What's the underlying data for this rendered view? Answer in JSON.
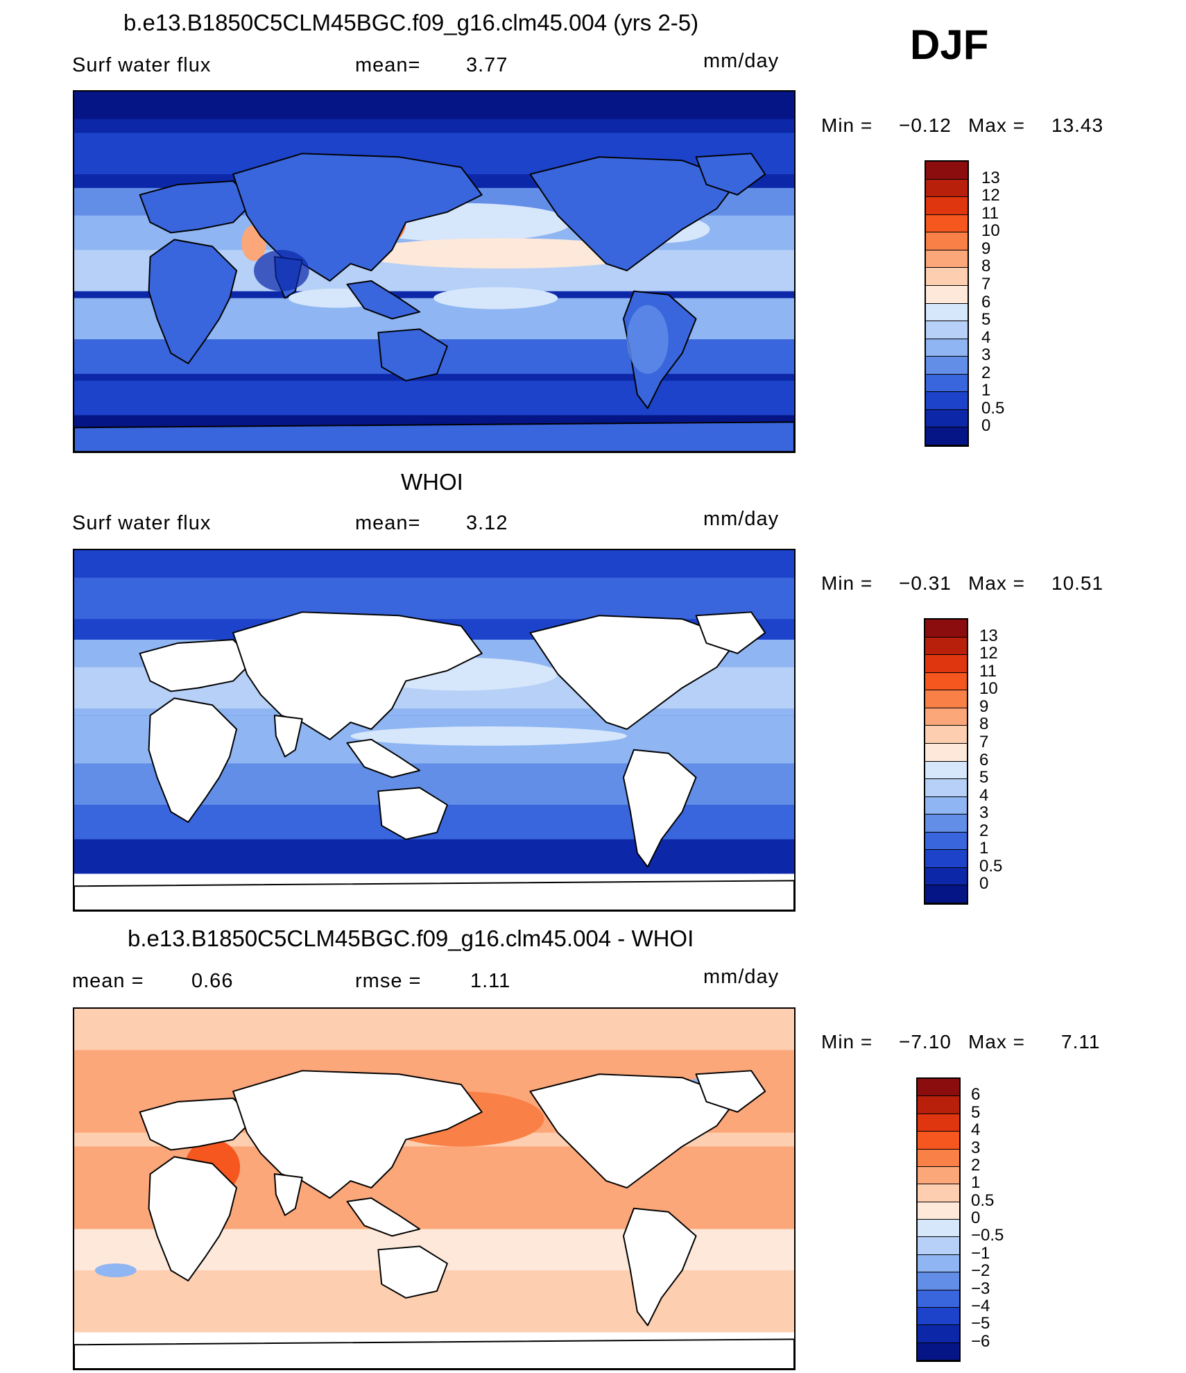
{
  "season": "DJF",
  "panels": [
    {
      "id": "model",
      "title": "b.e13.B1850C5CLM45BGC.f09_g16.clm45.004 (yrs 2-5)",
      "left_label": "Surf  water  flux",
      "mid_label": "mean=",
      "mid_value": "3.77",
      "units": "mm/day",
      "min_label": "Min  =",
      "min_value": "−0.12",
      "max_label": "Max  =",
      "max_value": "13.43",
      "land": "filled",
      "colorbar": {
        "labels": [
          "13",
          "12",
          "11",
          "10",
          "9",
          "8",
          "7",
          "6",
          "5",
          "4",
          "3",
          "2",
          "1",
          "0.5",
          "0"
        ],
        "colors": [
          "#8b0d0d",
          "#b8200c",
          "#e0360f",
          "#f5571e",
          "#f98047",
          "#fba77a",
          "#fdcfb0",
          "#fde8d9",
          "#d6e6fb",
          "#b6d0f7",
          "#8fb5f2",
          "#628ee8",
          "#3a66dd",
          "#1c43c9",
          "#0c28a8",
          "#051585"
        ]
      },
      "stats": {
        "mean": 3.77,
        "min": -0.12,
        "max": 13.43
      }
    },
    {
      "id": "obs",
      "title": "WHOI",
      "left_label": "Surf  water  flux",
      "mid_label": "mean=",
      "mid_value": "3.12",
      "units": "mm/day",
      "min_label": "Min  =",
      "min_value": "−0.31",
      "max_label": "Max  =",
      "max_value": "10.51",
      "land": "blank",
      "colorbar": {
        "labels": [
          "13",
          "12",
          "11",
          "10",
          "9",
          "8",
          "7",
          "6",
          "5",
          "4",
          "3",
          "2",
          "1",
          "0.5",
          "0"
        ],
        "colors": [
          "#8b0d0d",
          "#b8200c",
          "#e0360f",
          "#f5571e",
          "#f98047",
          "#fba77a",
          "#fdcfb0",
          "#fde8d9",
          "#d6e6fb",
          "#b6d0f7",
          "#8fb5f2",
          "#628ee8",
          "#3a66dd",
          "#1c43c9",
          "#0c28a8",
          "#051585"
        ]
      },
      "stats": {
        "mean": 3.12,
        "min": -0.31,
        "max": 10.51
      }
    },
    {
      "id": "diff",
      "title": "b.e13.B1850C5CLM45BGC.f09_g16.clm45.004 - WHOI",
      "left_label": "mean  =",
      "left_value": "0.66",
      "mid_label": "rmse  =",
      "mid_value": "1.11",
      "units": "mm/day",
      "min_label": "Min  =",
      "min_value": "−7.10",
      "max_label": "Max  =",
      "max_value": "7.11",
      "land": "blank",
      "colorbar": {
        "labels": [
          "6",
          "5",
          "4",
          "3",
          "2",
          "1",
          "0.5",
          "0",
          "−0.5",
          "−1",
          "−2",
          "−3",
          "−4",
          "−5",
          "−6"
        ],
        "colors": [
          "#8b0d0d",
          "#b8200c",
          "#e0360f",
          "#f5571e",
          "#f98047",
          "#fba77a",
          "#fdcfb0",
          "#fde8d9",
          "#d6e6fb",
          "#b6d0f7",
          "#8fb5f2",
          "#628ee8",
          "#3a66dd",
          "#1c43c9",
          "#0c28a8",
          "#051585"
        ]
      },
      "stats": {
        "mean": 0.66,
        "rmse": 1.11,
        "min": -7.1,
        "max": 7.11
      }
    }
  ]
}
